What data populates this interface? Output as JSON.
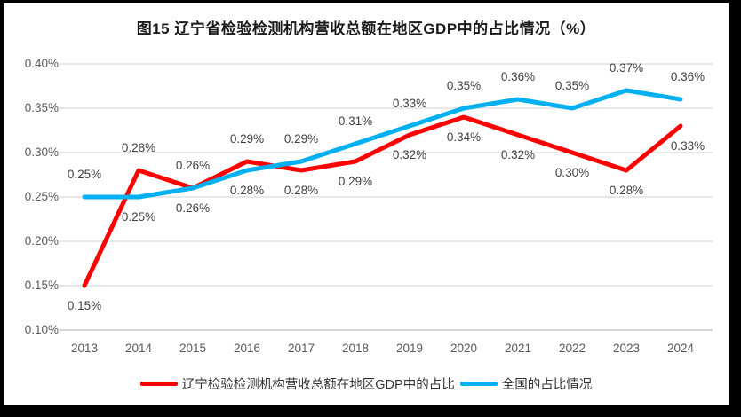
{
  "title": "图15 辽宁省检验检测机构营收总额在地区GDP中的占比情况（%）",
  "chart_data": {
    "type": "line",
    "categories": [
      "2013",
      "2014",
      "2015",
      "2016",
      "2017",
      "2018",
      "2019",
      "2020",
      "2021",
      "2022",
      "2023",
      "2024"
    ],
    "series": [
      {
        "id": "liaoning-gdp-share",
        "name": "辽宁检验检测机构营收总额在地区GDP中的占比",
        "color": "#FF0000",
        "values": [
          0.15,
          0.28,
          0.26,
          0.29,
          0.28,
          0.29,
          0.32,
          0.34,
          0.32,
          0.3,
          0.28,
          0.33
        ],
        "labels": [
          "0.15%",
          "0.28%",
          "0.26%",
          "0.29%",
          "0.28%",
          "0.29%",
          "0.32%",
          "0.34%",
          "0.32%",
          "0.30%",
          "0.28%",
          "0.33%"
        ],
        "label_positions": [
          "below",
          "above",
          "above",
          "above",
          "below",
          "below",
          "below",
          "below",
          "below",
          "below",
          "below",
          "below"
        ]
      },
      {
        "id": "national-share",
        "name": "全国的占比情况",
        "color": "#00B0F0",
        "values": [
          0.25,
          0.25,
          0.26,
          0.28,
          0.29,
          0.31,
          0.33,
          0.35,
          0.36,
          0.35,
          0.37,
          0.36
        ],
        "labels": [
          "0.25%",
          "0.25%",
          "0.26%",
          "0.28%",
          "0.29%",
          "0.31%",
          "0.33%",
          "0.35%",
          "0.36%",
          "0.35%",
          "0.37%",
          "0.36%"
        ],
        "label_positions": [
          "above",
          "below",
          "below",
          "below",
          "above",
          "above",
          "above",
          "above",
          "above",
          "above",
          "above",
          "above"
        ]
      }
    ],
    "title": "图15 辽宁省检验检测机构营收总额在地区GDP中的占比情况（%）",
    "xlabel": "",
    "ylabel": "",
    "ylim": [
      0.1,
      0.4
    ],
    "yticks": [
      {
        "label": "0.40%",
        "value": 0.4
      },
      {
        "label": "0.35%",
        "value": 0.35
      },
      {
        "label": "0.30%",
        "value": 0.3
      },
      {
        "label": "0.25%",
        "value": 0.25
      },
      {
        "label": "0.20%",
        "value": 0.2
      },
      {
        "label": "0.15%",
        "value": 0.15
      },
      {
        "label": "0.10%",
        "value": 0.1
      }
    ],
    "grid": true,
    "legend_position": "bottom"
  },
  "colors": {
    "grid": "#D9D9D9",
    "axis": "#BFBFBF",
    "tick_text": "#595959",
    "data_label_text": "#404040",
    "frame": "#000000",
    "background": "#FFFFFF"
  }
}
